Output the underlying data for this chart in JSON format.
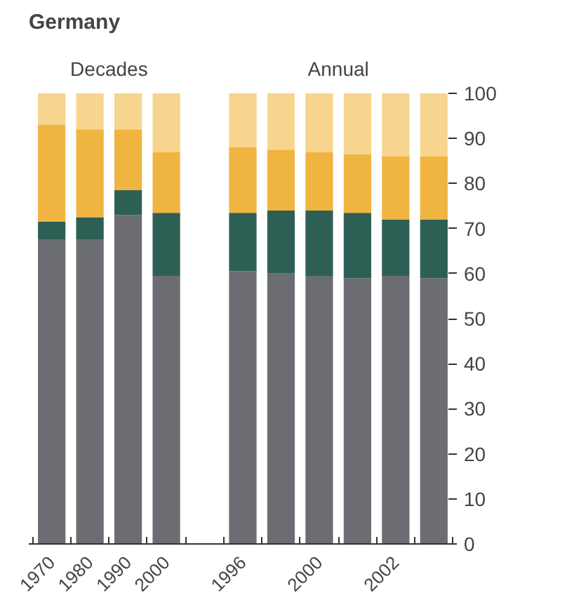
{
  "chart_data": {
    "type": "bar",
    "stacked": true,
    "title": "Germany",
    "annotations": [
      "Decades",
      "Annual"
    ],
    "categories": [
      "1970",
      "1980",
      "1990",
      "2000",
      null,
      "1996",
      null,
      "2000",
      null,
      "2002",
      null
    ],
    "series": [
      {
        "color": "#6b6d72",
        "values": [
          67.5,
          67.5,
          73,
          59.5,
          null,
          60.5,
          60,
          59.5,
          59,
          59.5,
          59
        ]
      },
      {
        "color": "#2e5f55",
        "values": [
          4,
          5,
          5.5,
          14,
          null,
          13,
          14,
          14.5,
          14.5,
          12.5,
          13
        ]
      },
      {
        "color": "#f0b440",
        "values": [
          21.5,
          19.5,
          13.5,
          13.5,
          null,
          14.5,
          13.5,
          13,
          13,
          14,
          14
        ]
      },
      {
        "color": "#f7d58f",
        "values": [
          7,
          8,
          8,
          13,
          null,
          12,
          12.5,
          13,
          13.5,
          14,
          14
        ]
      }
    ],
    "ylim": [
      0,
      100
    ],
    "yticks": [
      0,
      10,
      20,
      30,
      40,
      50,
      60,
      70,
      80,
      90,
      100
    ],
    "grid": false
  }
}
